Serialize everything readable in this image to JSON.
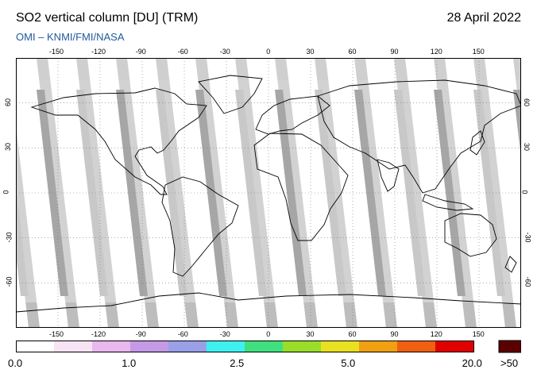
{
  "header": {
    "title": "SO2 vertical column [DU] (TRM)",
    "date": "28 April 2022",
    "credit": "OMI  –  KNMI/FMI/NASA"
  },
  "map": {
    "lon_ticks": [
      "-150",
      "-120",
      "-90",
      "-60",
      "-30",
      "0",
      "30",
      "60",
      "90",
      "120",
      "150"
    ],
    "lat_ticks_left": [
      "60",
      "30",
      "0",
      "-30",
      "-60"
    ],
    "lat_ticks_right": [
      "60",
      "30",
      "0",
      "-30",
      "-60"
    ]
  },
  "colorbar": {
    "labels": [
      "0.0",
      "1.0",
      "2.5",
      "5.0",
      "20.0"
    ],
    "overflow_label": ">50",
    "colors": [
      "#ffffff",
      "#f6e4f4",
      "#e8b8ee",
      "#c49ae6",
      "#9aa0e8",
      "#3ff0f0",
      "#40e080",
      "#9ade2a",
      "#e8e020",
      "#f0a010",
      "#f06010",
      "#e00000"
    ],
    "overflow_color": "#5a0000"
  }
}
